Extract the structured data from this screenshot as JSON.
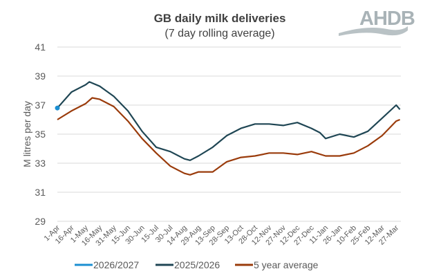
{
  "chart_data": {
    "type": "line",
    "title": "GB daily milk deliveries",
    "subtitle": "(7 day rolling average)",
    "ylabel": "M litres per day",
    "xlabel": "",
    "ylim": [
      29,
      41
    ],
    "yticks": [
      29,
      31,
      33,
      35,
      37,
      39,
      41
    ],
    "xticks": [
      "1-Apr",
      "16-Apr",
      "1-May",
      "16-May",
      "31-May",
      "15-Jun",
      "30-Jun",
      "15-Jul",
      "30-Jul",
      "14-Aug",
      "29-Aug",
      "13-Sep",
      "28-Sep",
      "13-Oct",
      "28-Oct",
      "12-Nov",
      "27-Nov",
      "12-Dec",
      "27-Dec",
      "11-Jan",
      "26-Jan",
      "10-Feb",
      "25-Feb",
      "12-Mar",
      "27-Mar"
    ],
    "grid": true,
    "legend_placement": "bottom",
    "series": [
      {
        "name": "2026/2027",
        "color": "#1b8fd2",
        "points": [
          [
            "1-Apr",
            36.8
          ]
        ]
      },
      {
        "name": "2025/2026",
        "color": "#1f4654",
        "points": [
          [
            "1-Apr",
            36.8
          ],
          [
            "16-Apr",
            37.9
          ],
          [
            "1-May",
            38.4
          ],
          [
            "5-May",
            38.6
          ],
          [
            "16-May",
            38.3
          ],
          [
            "31-May",
            37.6
          ],
          [
            "15-Jun",
            36.6
          ],
          [
            "30-Jun",
            35.2
          ],
          [
            "15-Jul",
            34.1
          ],
          [
            "30-Jul",
            33.8
          ],
          [
            "14-Aug",
            33.3
          ],
          [
            "20-Aug",
            33.2
          ],
          [
            "29-Aug",
            33.5
          ],
          [
            "13-Sep",
            34.1
          ],
          [
            "28-Sep",
            34.9
          ],
          [
            "13-Oct",
            35.4
          ],
          [
            "28-Oct",
            35.7
          ],
          [
            "12-Nov",
            35.7
          ],
          [
            "27-Nov",
            35.6
          ],
          [
            "12-Dec",
            35.8
          ],
          [
            "27-Dec",
            35.4
          ],
          [
            "5-Jan",
            35.1
          ],
          [
            "11-Jan",
            34.7
          ],
          [
            "26-Jan",
            35.0
          ],
          [
            "10-Feb",
            34.8
          ],
          [
            "25-Feb",
            35.2
          ],
          [
            "12-Mar",
            36.1
          ],
          [
            "27-Mar",
            37.0
          ],
          [
            "31-Mar",
            36.7
          ]
        ]
      },
      {
        "name": "5 year average",
        "color": "#9a3b0b",
        "points": [
          [
            "1-Apr",
            36.0
          ],
          [
            "16-Apr",
            36.6
          ],
          [
            "1-May",
            37.1
          ],
          [
            "8-May",
            37.5
          ],
          [
            "16-May",
            37.4
          ],
          [
            "31-May",
            36.9
          ],
          [
            "15-Jun",
            35.9
          ],
          [
            "30-Jun",
            34.7
          ],
          [
            "15-Jul",
            33.7
          ],
          [
            "30-Jul",
            32.8
          ],
          [
            "14-Aug",
            32.3
          ],
          [
            "20-Aug",
            32.2
          ],
          [
            "29-Aug",
            32.4
          ],
          [
            "13-Sep",
            32.4
          ],
          [
            "28-Sep",
            33.1
          ],
          [
            "13-Oct",
            33.4
          ],
          [
            "28-Oct",
            33.5
          ],
          [
            "12-Nov",
            33.7
          ],
          [
            "27-Nov",
            33.7
          ],
          [
            "12-Dec",
            33.6
          ],
          [
            "27-Dec",
            33.8
          ],
          [
            "11-Jan",
            33.5
          ],
          [
            "26-Jan",
            33.5
          ],
          [
            "10-Feb",
            33.7
          ],
          [
            "25-Feb",
            34.2
          ],
          [
            "12-Mar",
            34.9
          ],
          [
            "27-Mar",
            35.9
          ],
          [
            "31-Mar",
            36.0
          ]
        ]
      }
    ]
  },
  "logo": {
    "text": "AHDB",
    "color": "#a9b3b7"
  }
}
